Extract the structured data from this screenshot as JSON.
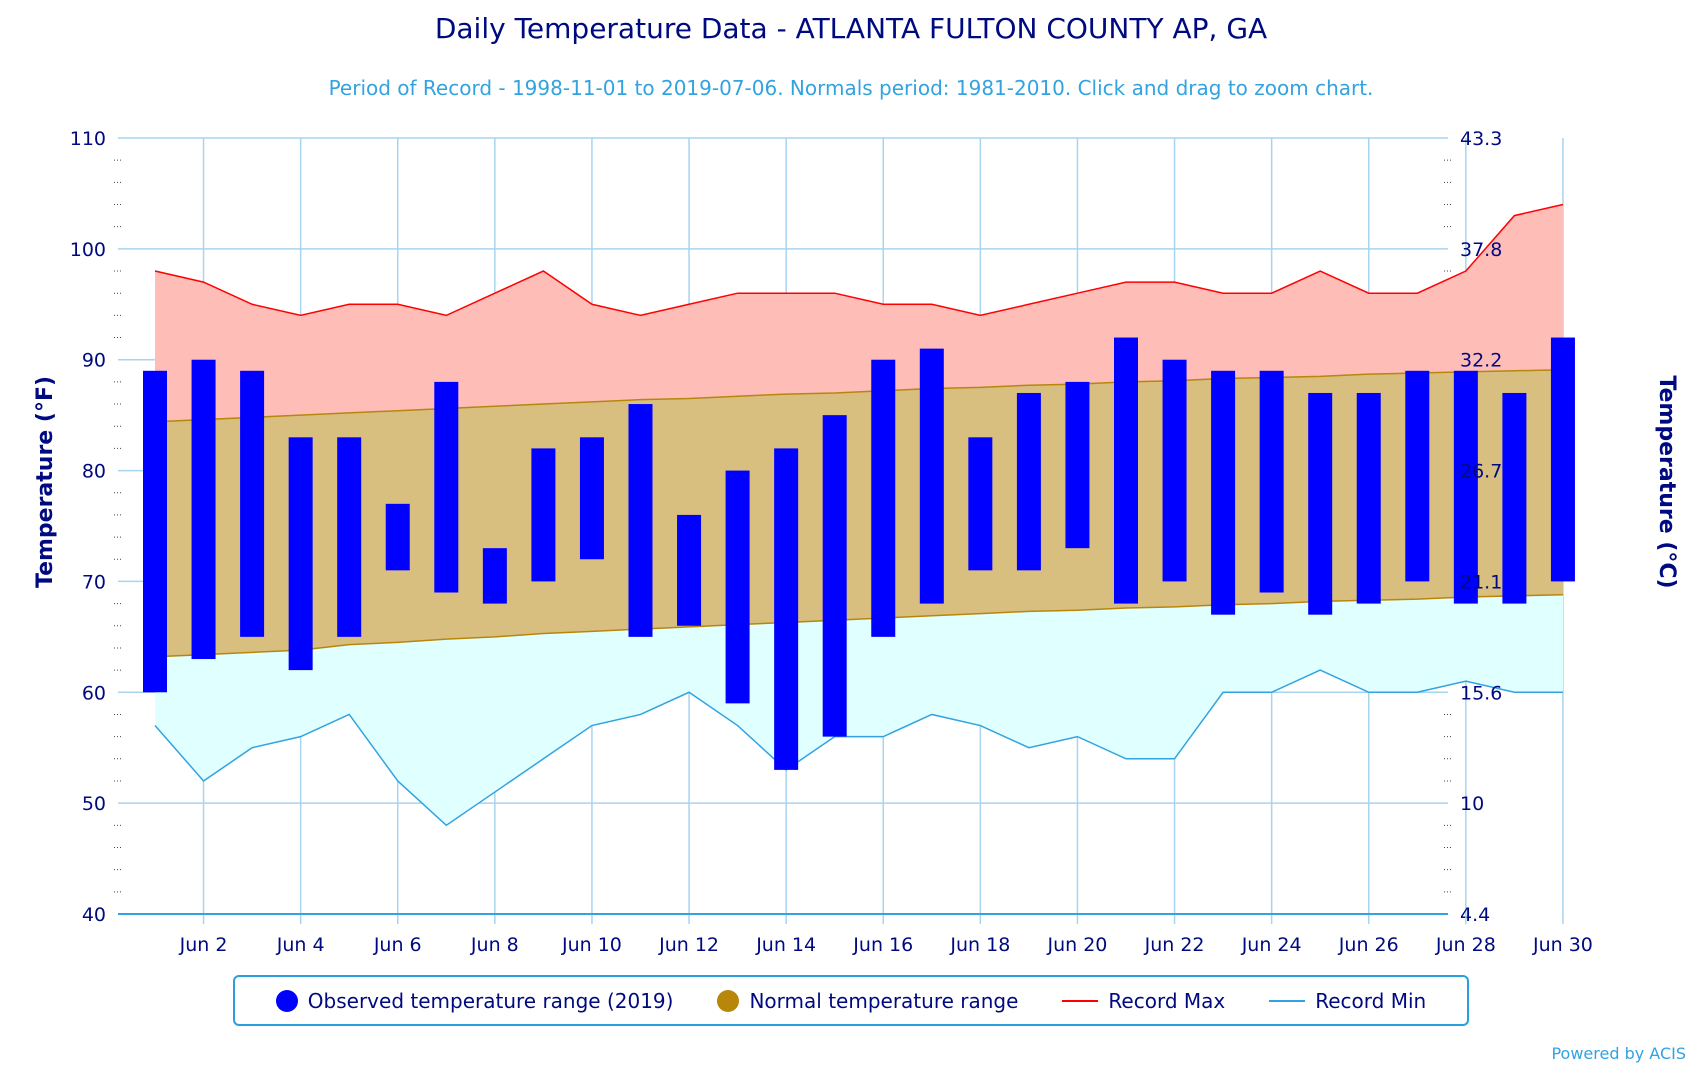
{
  "title": "Daily Temperature Data - ATLANTA FULTON COUNTY AP, GA",
  "subtitle": "Period of Record - 1998-11-01 to 2019-07-06. Normals period: 1981-2010. Click and drag to zoom chart.",
  "credit": "Powered by ACIS",
  "colors": {
    "observed": "#0000ff",
    "normal_fill": "#d9bf7f",
    "normal_line": "#b8860b",
    "record_max_fill": "#ffbdb8",
    "record_max_line": "#ff0000",
    "record_min_fill": "#e0ffff",
    "record_min_line": "#32a3e0",
    "grid": "#a8d4ef",
    "axis_text": "#000a80"
  },
  "legend": {
    "observed": "Observed temperature range (2019)",
    "normal": "Normal temperature range",
    "record_max": "Record Max",
    "record_min": "Record Min"
  },
  "chart_data": {
    "type": "bar",
    "ylabel": "Temperature (°F)",
    "y2label": "Temperature (°C)",
    "ylim": [
      40,
      110
    ],
    "yticks": [
      40,
      50,
      60,
      70,
      80,
      90,
      100,
      110
    ],
    "y2ticks": [
      "4.4",
      "10",
      "15.6",
      "21.1",
      "26.7",
      "32.2",
      "37.8",
      "43.3"
    ],
    "xticks": [
      "Jun 2",
      "Jun 4",
      "Jun 6",
      "Jun 8",
      "Jun 10",
      "Jun 12",
      "Jun 14",
      "Jun 16",
      "Jun 18",
      "Jun 20",
      "Jun 22",
      "Jun 24",
      "Jun 26",
      "Jun 28",
      "Jun 30"
    ],
    "days": [
      1,
      2,
      3,
      4,
      5,
      6,
      7,
      8,
      9,
      10,
      11,
      12,
      13,
      14,
      15,
      16,
      17,
      18,
      19,
      20,
      21,
      22,
      23,
      24,
      25,
      26,
      27,
      28,
      29,
      30
    ],
    "series": [
      {
        "name": "Observed temperature range (2019)",
        "low": [
          60,
          63,
          65,
          62,
          65,
          71,
          69,
          68,
          70,
          72,
          65,
          66,
          59,
          53,
          56,
          65,
          68,
          71,
          71,
          73,
          68,
          70,
          67,
          69,
          67,
          68,
          70,
          68,
          68,
          70
        ],
        "high": [
          89,
          90,
          89,
          83,
          83,
          77,
          88,
          73,
          82,
          83,
          86,
          76,
          80,
          82,
          85,
          90,
          91,
          83,
          87,
          88,
          92,
          90,
          89,
          89,
          87,
          87,
          89,
          89,
          87,
          92
        ]
      },
      {
        "name": "Normal temperature range",
        "low": [
          63.2,
          63.4,
          63.6,
          63.8,
          64.3,
          64.5,
          64.8,
          65.0,
          65.3,
          65.5,
          65.7,
          65.9,
          66.1,
          66.3,
          66.5,
          66.7,
          66.9,
          67.1,
          67.3,
          67.4,
          67.6,
          67.7,
          67.9,
          68.0,
          68.2,
          68.3,
          68.4,
          68.6,
          68.7,
          68.8
        ],
        "high": [
          84.4,
          84.6,
          84.8,
          85.0,
          85.2,
          85.4,
          85.6,
          85.8,
          86.0,
          86.2,
          86.4,
          86.5,
          86.7,
          86.9,
          87.0,
          87.2,
          87.4,
          87.5,
          87.7,
          87.8,
          88.0,
          88.1,
          88.3,
          88.4,
          88.5,
          88.7,
          88.8,
          88.9,
          89.0,
          89.1
        ]
      },
      {
        "name": "Record Max",
        "values": [
          98,
          97,
          95,
          94,
          95,
          95,
          94,
          96,
          98,
          95,
          94,
          95,
          96,
          96,
          96,
          95,
          95,
          94,
          95,
          96,
          97,
          97,
          96,
          96,
          98,
          96,
          96,
          98,
          103,
          104
        ]
      },
      {
        "name": "Record Min",
        "values": [
          57,
          52,
          55,
          56,
          58,
          52,
          48,
          51,
          54,
          57,
          58,
          60,
          57,
          53,
          56,
          56,
          58,
          57,
          55,
          56,
          54,
          54,
          60,
          60,
          62,
          60,
          60,
          61,
          60,
          60
        ]
      }
    ]
  }
}
